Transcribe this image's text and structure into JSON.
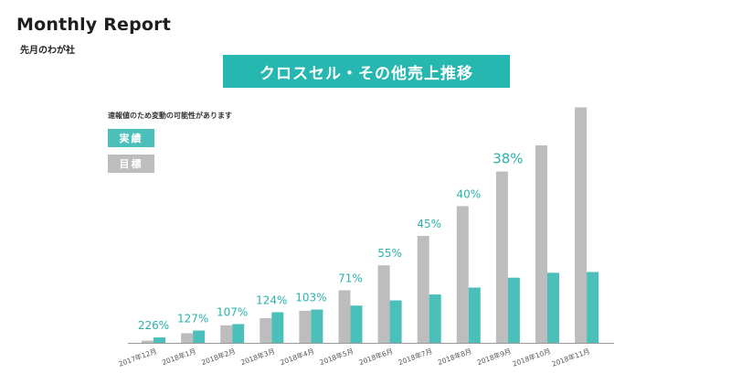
{
  "header": {
    "title": "Monthly Report",
    "subtitle": "先月のわが社"
  },
  "chart_title": "クロスセル・その他売上推移",
  "note": "速報値のため変動の可能性があります",
  "colors": {
    "actual": "#4bbfb9",
    "target": "#bdbdbd",
    "accent": "#26b7b0",
    "percent_text": "#2ab2ab"
  },
  "chart_data": {
    "type": "bar",
    "title": "クロスセル・その他売上推移",
    "categories": [
      "2017年12月",
      "2018年1月",
      "2018年2月",
      "2018年3月",
      "2018年4月",
      "2018年5月",
      "2018年6月",
      "2018年7月",
      "2018年8月",
      "2018年9月",
      "2018年10月",
      "2018年11月"
    ],
    "series": [
      {
        "name": "実績",
        "values": [
          2.2,
          5.0,
          7.6,
          12.4,
          13.5,
          15.1,
          17.2,
          19.6,
          22.4,
          26.4,
          28.4,
          28.7
        ]
      },
      {
        "name": "目標",
        "values": [
          0.9,
          3.9,
          7.1,
          10.0,
          13.0,
          21.3,
          31.4,
          43.3,
          55.4,
          69.4,
          80.0,
          95.4
        ]
      }
    ],
    "labels": [
      "226%",
      "127%",
      "107%",
      "124%",
      "103%",
      "71%",
      "55%",
      "45%",
      "40%",
      "38%",
      "",
      ""
    ],
    "ylim": [
      0,
      100
    ],
    "grid": false,
    "legend": "top-left"
  }
}
